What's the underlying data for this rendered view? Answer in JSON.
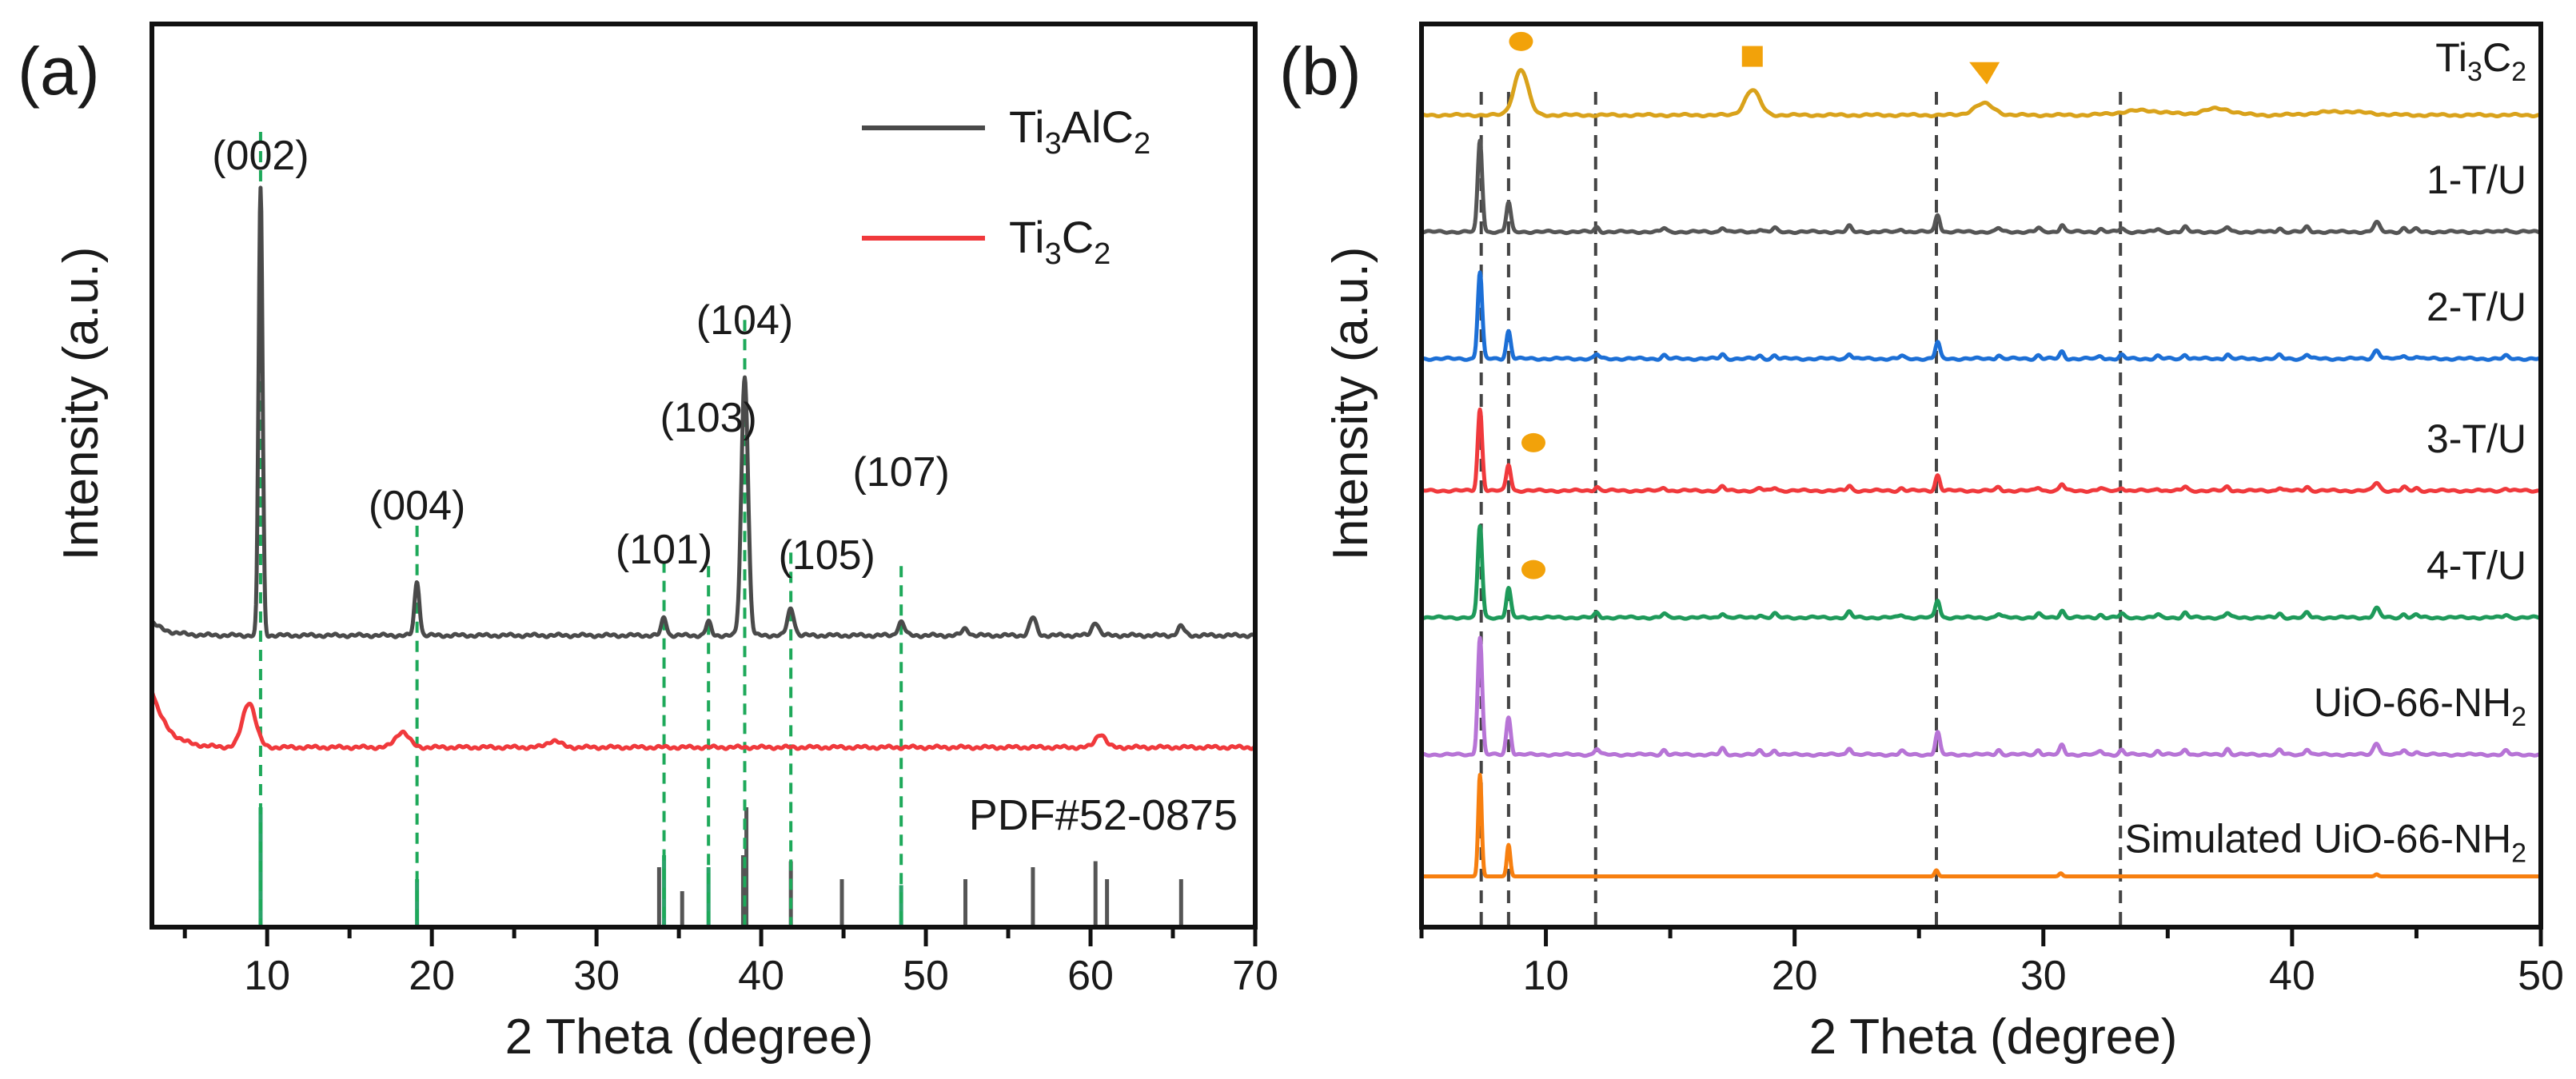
{
  "chart_data": [
    {
      "panel": "(a)",
      "type": "line",
      "xlabel": "2 Theta (degree)",
      "ylabel": "Intensity (a.u.)",
      "xlim": [
        3,
        70
      ],
      "x_ticks": [
        10,
        20,
        30,
        40,
        50,
        60,
        70
      ],
      "legend": {
        "placement": "top-right",
        "entries": [
          {
            "base": "Ti",
            "sub1": "3",
            "mid": "AlC",
            "sub2": "2",
            "color": "#4a4a4a"
          },
          {
            "base": "Ti",
            "sub1": "3",
            "mid": "C",
            "sub2": "2",
            "color": "#f0393c"
          }
        ]
      },
      "series": [
        {
          "name": "Ti3AlC2",
          "color": "#4a4a4a",
          "baseline": 0.3,
          "start_rise": 0.03,
          "peaks": [
            {
              "x": 9.6,
              "h": 1.0,
              "w": 0.12
            },
            {
              "x": 19.1,
              "h": 0.12,
              "w": 0.15
            },
            {
              "x": 34.1,
              "h": 0.04,
              "w": 0.15
            },
            {
              "x": 36.8,
              "h": 0.03,
              "w": 0.15
            },
            {
              "x": 39.0,
              "h": 0.58,
              "w": 0.2
            },
            {
              "x": 41.8,
              "h": 0.06,
              "w": 0.2
            },
            {
              "x": 48.5,
              "h": 0.03,
              "w": 0.2
            },
            {
              "x": 52.4,
              "h": 0.015,
              "w": 0.2
            },
            {
              "x": 56.5,
              "h": 0.04,
              "w": 0.2
            },
            {
              "x": 60.3,
              "h": 0.03,
              "w": 0.2
            },
            {
              "x": 65.5,
              "h": 0.02,
              "w": 0.2
            }
          ]
        },
        {
          "name": "Ti3C2",
          "color": "#f0393c",
          "baseline": 0.16,
          "start_rise": 0.13,
          "peaks": [
            {
              "x": 8.9,
              "h": 0.1,
              "w": 0.4
            },
            {
              "x": 18.2,
              "h": 0.035,
              "w": 0.4
            },
            {
              "x": 27.4,
              "h": 0.015,
              "w": 0.4
            },
            {
              "x": 60.6,
              "h": 0.03,
              "w": 0.3
            }
          ]
        }
      ],
      "hkl_annotations": [
        {
          "label": "(002)",
          "x": 9.6
        },
        {
          "label": "(004)",
          "x": 19.1
        },
        {
          "label": "(101)",
          "x": 34.1
        },
        {
          "label": "(103)",
          "x": 36.8
        },
        {
          "label": "(104)",
          "x": 39.0
        },
        {
          "label": "(105)",
          "x": 41.8
        },
        {
          "label": "(107)",
          "x": 48.5
        }
      ],
      "reference": {
        "label": "PDF#52-0875",
        "sticks": [
          {
            "x": 9.6,
            "h": 1.0,
            "c": "g"
          },
          {
            "x": 19.1,
            "h": 0.4,
            "c": "g"
          },
          {
            "x": 33.8,
            "h": 0.5,
            "c": "k"
          },
          {
            "x": 34.1,
            "h": 0.6,
            "c": "g"
          },
          {
            "x": 35.2,
            "h": 0.3,
            "c": "k"
          },
          {
            "x": 36.8,
            "h": 0.5,
            "c": "g"
          },
          {
            "x": 38.9,
            "h": 0.6,
            "c": "k"
          },
          {
            "x": 39.1,
            "h": 1.0,
            "c": "k"
          },
          {
            "x": 41.8,
            "h": 0.55,
            "c": "k"
          },
          {
            "x": 44.9,
            "h": 0.4,
            "c": "k"
          },
          {
            "x": 48.5,
            "h": 0.35,
            "c": "g"
          },
          {
            "x": 52.4,
            "h": 0.4,
            "c": "k"
          },
          {
            "x": 56.5,
            "h": 0.5,
            "c": "k"
          },
          {
            "x": 60.3,
            "h": 0.55,
            "c": "k"
          },
          {
            "x": 61.0,
            "h": 0.4,
            "c": "k"
          },
          {
            "x": 65.5,
            "h": 0.4,
            "c": "k"
          }
        ]
      }
    },
    {
      "panel": "(b)",
      "type": "line",
      "xlabel": "2 Theta (degree)",
      "ylabel": "Intensity (a.u.)",
      "xlim": [
        5,
        50
      ],
      "x_ticks": [
        10,
        20,
        30,
        40,
        50
      ],
      "reference_lines_x": [
        7.4,
        8.5,
        12.0,
        25.7,
        33.1
      ],
      "series": [
        {
          "name": "Ti3C2",
          "label": {
            "base": "Ti",
            "sub1": "3",
            "mid": "C",
            "sub2": "2"
          },
          "color": "#d9a21b",
          "type": "mxene",
          "offset": 8.0,
          "scale": 0.45
        },
        {
          "name": "1-T/U",
          "label": {
            "base": "1-T/U"
          },
          "color": "#555555",
          "type": "uio",
          "offset": 6.85,
          "scale": 0.9
        },
        {
          "name": "2-T/U",
          "label": {
            "base": "2-T/U"
          },
          "color": "#1c6fd6",
          "type": "uio",
          "offset": 5.6,
          "scale": 0.85
        },
        {
          "name": "3-T/U",
          "label": {
            "base": "3-T/U"
          },
          "color": "#f0393c",
          "type": "uio",
          "offset": 4.3,
          "scale": 0.8
        },
        {
          "name": "4-T/U",
          "label": {
            "base": "4-T/U"
          },
          "color": "#1e9a5a",
          "type": "uio",
          "offset": 3.05,
          "scale": 0.9
        },
        {
          "name": "UiO-66-NH2",
          "label": {
            "base": "UiO-66-NH",
            "sub2": "2"
          },
          "color": "#b774d6",
          "type": "uio",
          "offset": 1.7,
          "scale": 1.15
        },
        {
          "name": "Simulated UiO-66-NH2",
          "label": {
            "base": "Simulated UiO-66-NH",
            "sub2": "2"
          },
          "color": "#f77f0f",
          "type": "sim",
          "offset": 0.5,
          "scale": 1.0
        }
      ],
      "uio_peaks": [
        {
          "x": 7.35,
          "h": 1.0,
          "w": 0.09
        },
        {
          "x": 8.5,
          "h": 0.32,
          "w": 0.09
        },
        {
          "x": 12.05,
          "h": 0.05,
          "w": 0.09
        },
        {
          "x": 14.75,
          "h": 0.04,
          "w": 0.09
        },
        {
          "x": 17.1,
          "h": 0.05,
          "w": 0.09
        },
        {
          "x": 18.6,
          "h": 0.03,
          "w": 0.09
        },
        {
          "x": 19.2,
          "h": 0.04,
          "w": 0.09
        },
        {
          "x": 22.2,
          "h": 0.06,
          "w": 0.09
        },
        {
          "x": 24.3,
          "h": 0.03,
          "w": 0.09
        },
        {
          "x": 25.75,
          "h": 0.19,
          "w": 0.09
        },
        {
          "x": 28.2,
          "h": 0.04,
          "w": 0.09
        },
        {
          "x": 29.8,
          "h": 0.04,
          "w": 0.09
        },
        {
          "x": 30.75,
          "h": 0.08,
          "w": 0.09
        },
        {
          "x": 32.3,
          "h": 0.03,
          "w": 0.09
        },
        {
          "x": 33.15,
          "h": 0.04,
          "w": 0.09
        },
        {
          "x": 34.6,
          "h": 0.03,
          "w": 0.09
        },
        {
          "x": 35.7,
          "h": 0.05,
          "w": 0.09
        },
        {
          "x": 37.4,
          "h": 0.05,
          "w": 0.09
        },
        {
          "x": 39.5,
          "h": 0.04,
          "w": 0.09
        },
        {
          "x": 40.6,
          "h": 0.05,
          "w": 0.09
        },
        {
          "x": 43.4,
          "h": 0.1,
          "w": 0.12
        },
        {
          "x": 44.5,
          "h": 0.04,
          "w": 0.09
        },
        {
          "x": 45.0,
          "h": 0.03,
          "w": 0.09
        },
        {
          "x": 48.6,
          "h": 0.03,
          "w": 0.09
        }
      ],
      "mxene_peaks": [
        {
          "x": 9.0,
          "h": 1.0,
          "w": 0.28
        },
        {
          "x": 18.3,
          "h": 0.55,
          "w": 0.3
        },
        {
          "x": 27.6,
          "h": 0.25,
          "w": 0.4
        },
        {
          "x": 34.0,
          "h": 0.1,
          "w": 0.9
        },
        {
          "x": 37.0,
          "h": 0.14,
          "w": 0.6
        },
        {
          "x": 42.0,
          "h": 0.08,
          "w": 1.0
        }
      ],
      "sim_peaks": [
        {
          "x": 7.35,
          "h": 1.0,
          "w": 0.07
        },
        {
          "x": 8.5,
          "h": 0.31,
          "w": 0.07
        },
        {
          "x": 25.7,
          "h": 0.06,
          "w": 0.07
        },
        {
          "x": 30.7,
          "h": 0.03,
          "w": 0.07
        },
        {
          "x": 43.4,
          "h": 0.02,
          "w": 0.07
        }
      ],
      "markers": [
        {
          "shape": "circle",
          "x": 9.0,
          "series": "Ti3C2",
          "note": "peak marker"
        },
        {
          "shape": "square",
          "x": 18.3,
          "series": "Ti3C2"
        },
        {
          "shape": "triangle",
          "x": 27.6,
          "series": "Ti3C2"
        },
        {
          "shape": "circle",
          "x": 9.5,
          "series": "3-T/U"
        },
        {
          "shape": "circle",
          "x": 9.5,
          "series": "4-T/U"
        }
      ],
      "marker_color": "#f2a20a"
    }
  ]
}
